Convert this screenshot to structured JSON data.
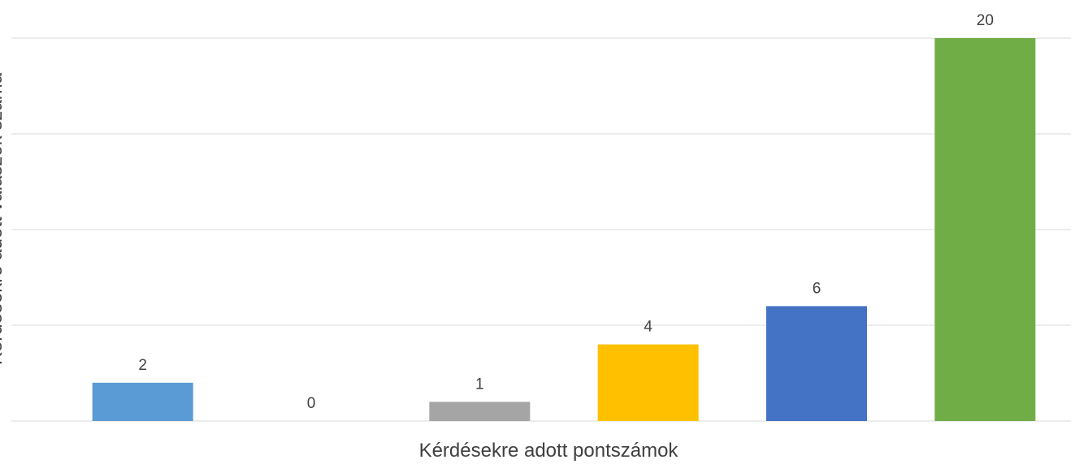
{
  "chart_data": {
    "type": "bar",
    "title": "",
    "xlabel": "Kérdésekre adott pontszámok",
    "ylabel": "Kérdésekre adott válaszok száma",
    "ylim": [
      0,
      20
    ],
    "grid": true,
    "legend": "none",
    "categories": [
      "",
      "",
      "",
      "",
      "",
      ""
    ],
    "values": [
      2,
      0,
      1,
      4,
      6,
      20
    ],
    "data_labels": [
      "2",
      "0",
      "1",
      "4",
      "6",
      "20"
    ],
    "colors": [
      "#5b9bd5",
      "#ed7d31",
      "#a5a5a5",
      "#ffc000",
      "#4472c4",
      "#70ad47"
    ]
  }
}
